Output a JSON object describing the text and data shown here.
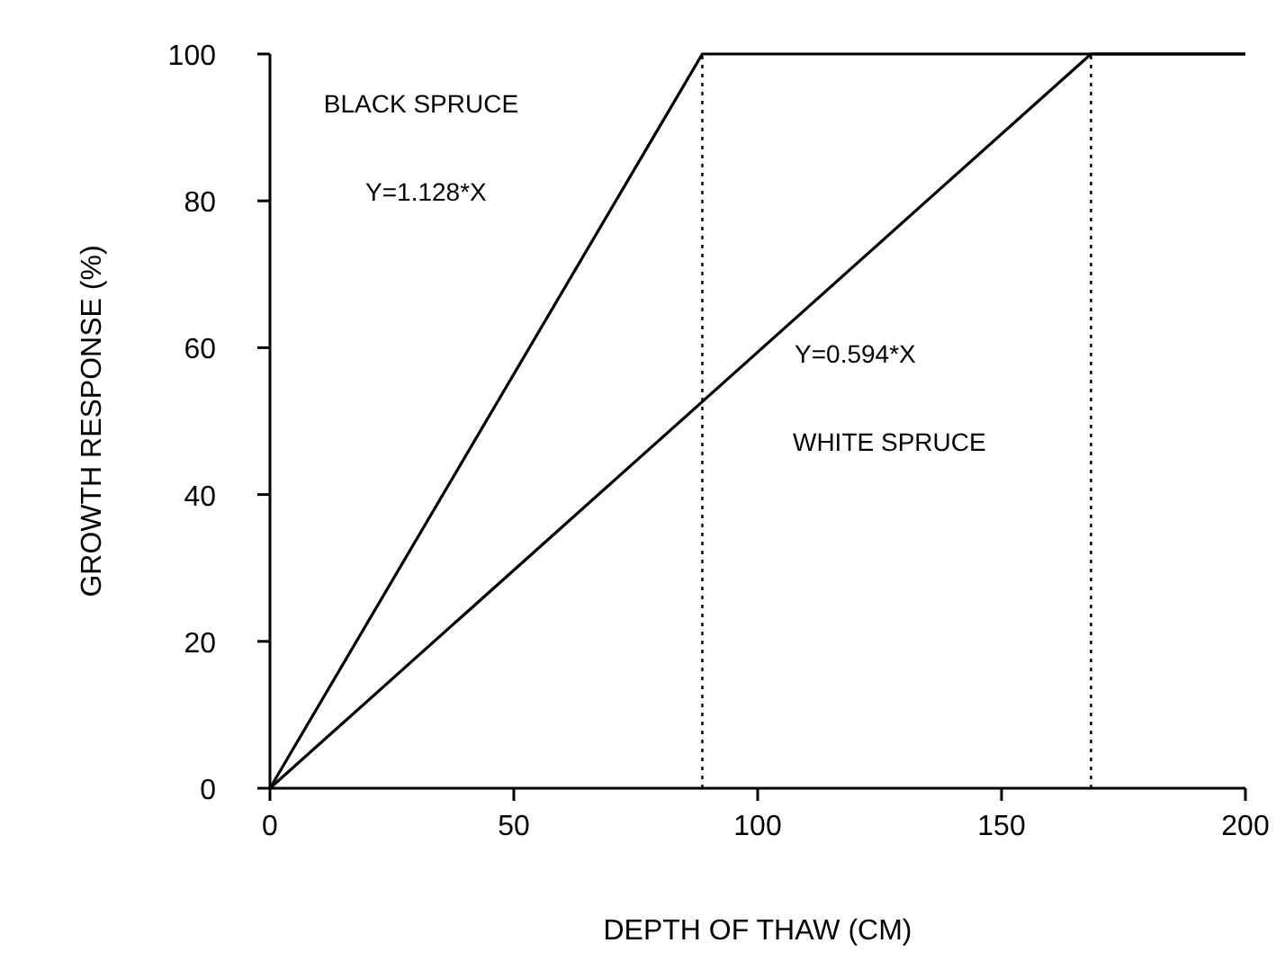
{
  "chart_data": {
    "type": "line",
    "xlabel": "DEPTH OF THAW (CM)",
    "ylabel": "GROWTH RESPONSE (%)",
    "series": [
      {
        "color": "#000000",
        "x": [
          0,
          88.65,
          200
        ],
        "values": [
          0,
          100,
          100
        ]
      },
      {
        "color": "#000000",
        "x": [
          0,
          168.35,
          200
        ],
        "values": [
          0,
          100,
          100
        ]
      }
    ],
    "annotations": [
      "BLACK SPRUCE",
      "Y=1.128*X",
      "Y=0.594*X",
      "WHITE SPRUCE"
    ],
    "ref_lines": [
      {
        "axis": "x",
        "value": 88.65,
        "line_style": "dotted"
      },
      {
        "axis": "x",
        "value": 168.35,
        "line_style": "dotted"
      }
    ],
    "xlim": [
      0,
      200
    ],
    "xticks": [
      0,
      50,
      100,
      150,
      200
    ],
    "ylim": [
      0,
      100
    ],
    "yticks": [
      0,
      20,
      40,
      60,
      80,
      100
    ],
    "grid": false,
    "marker": "none",
    "line_style": "solid"
  }
}
